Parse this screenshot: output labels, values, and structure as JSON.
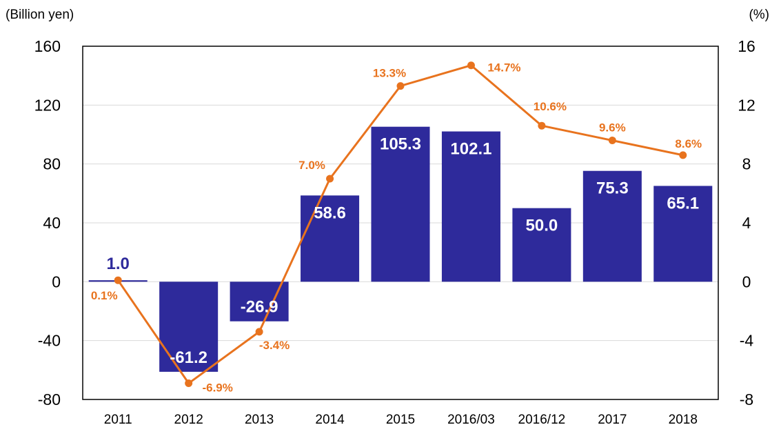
{
  "chart_data": {
    "type": "bar",
    "left_axis_unit": "(Billion yen)",
    "right_axis_unit": "(%)",
    "categories": [
      "2011",
      "2012",
      "2013",
      "2014",
      "2015",
      "2016/03",
      "2016/12",
      "2017",
      "2018"
    ],
    "series": [
      {
        "type": "bar",
        "axis": "left",
        "values": [
          1.0,
          -61.2,
          -26.9,
          58.6,
          105.3,
          102.1,
          50.0,
          75.3,
          65.1
        ],
        "labels": [
          "1.0",
          "-61.2",
          "-26.9",
          "58.6",
          "105.3",
          "102.1",
          "50.0",
          "75.3",
          "65.1"
        ],
        "color": "#2E2A9B"
      },
      {
        "type": "line",
        "axis": "right",
        "values": [
          0.1,
          -6.9,
          -3.4,
          7.0,
          13.3,
          14.7,
          10.6,
          9.6,
          8.6
        ],
        "labels": [
          "0.1%",
          "-6.9%",
          "-3.4%",
          "7.0%",
          "13.3%",
          "14.7%",
          "10.6%",
          "9.6%",
          "8.6%"
        ],
        "color": "#E8731E"
      }
    ],
    "left_ylim": [
      -80,
      160
    ],
    "left_ticks": [
      "160",
      "120",
      "80",
      "40",
      "0",
      "-40",
      "-80"
    ],
    "right_ylim": [
      -8,
      16
    ],
    "right_ticks": [
      "16",
      "12",
      "8",
      "4",
      "0",
      "-4",
      "-8"
    ],
    "grid": true,
    "legend": "none"
  }
}
